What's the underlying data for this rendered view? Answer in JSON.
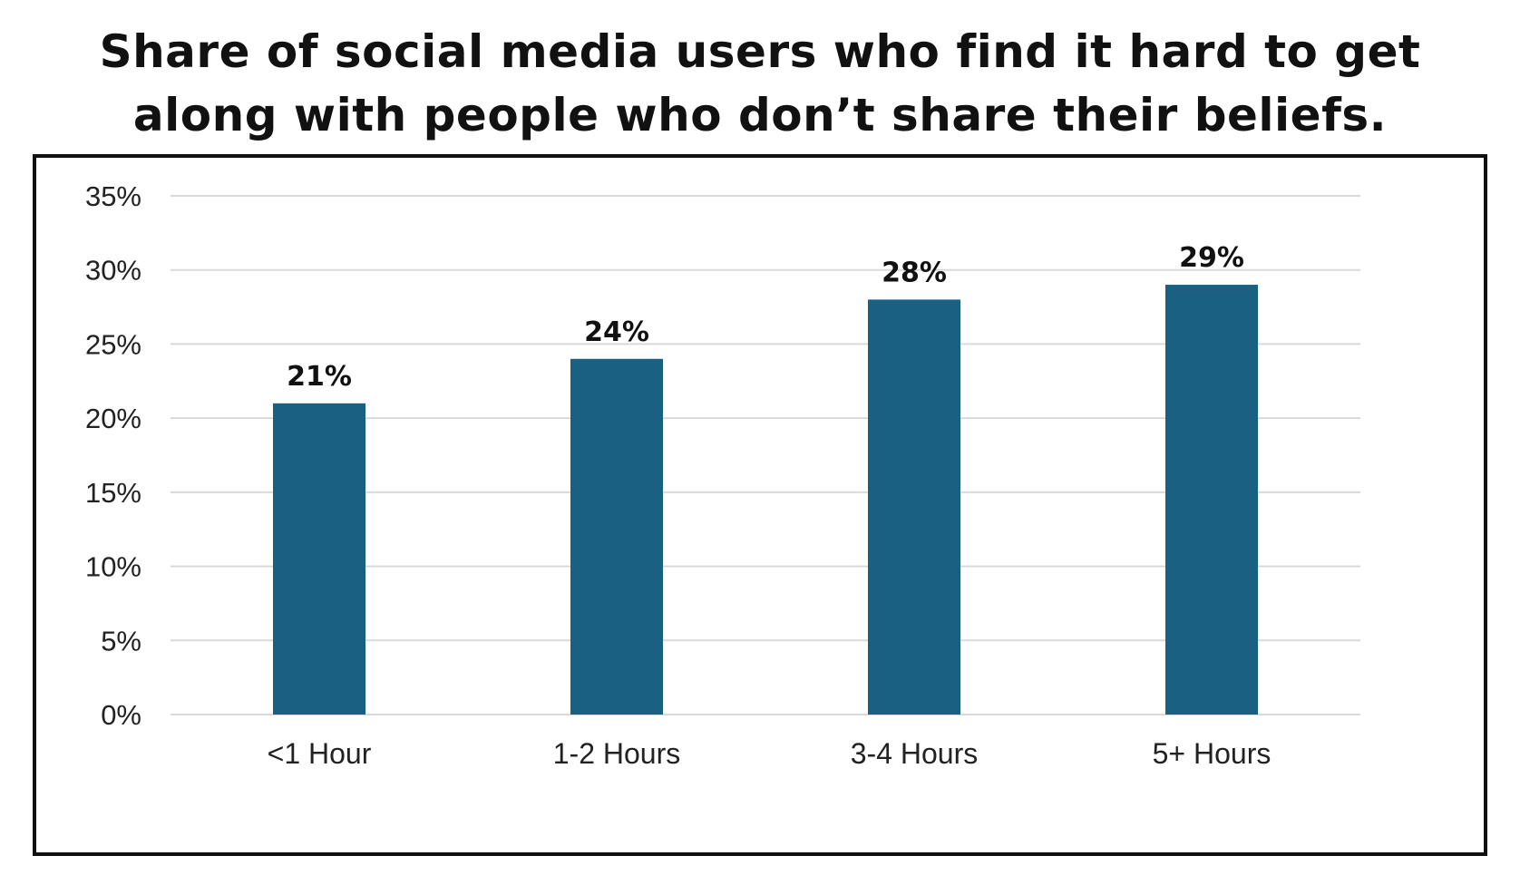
{
  "title": {
    "line1": "Share of social media users who find it hard to get",
    "line2": "along with people who don’t share their beliefs."
  },
  "colors": {
    "bar": "#1a6083",
    "grid": "#d9d9d9",
    "frame": "#111111"
  },
  "chart_data": {
    "type": "bar",
    "title": "Share of social media users who find it hard to get along with people who don’t share their beliefs.",
    "categories": [
      "<1 Hour",
      "1-2 Hours",
      "3-4 Hours",
      "5+ Hours"
    ],
    "values": [
      21,
      24,
      28,
      29
    ],
    "value_labels": [
      "21%",
      "24%",
      "28%",
      "29%"
    ],
    "yticks": [
      0,
      5,
      10,
      15,
      20,
      25,
      30,
      35
    ],
    "ytick_labels": [
      "0%",
      "5%",
      "10%",
      "15%",
      "20%",
      "25%",
      "30%",
      "35%"
    ],
    "ylim": [
      0,
      35
    ],
    "xlabel": "",
    "ylabel": "",
    "grid": true,
    "legend": "none"
  }
}
